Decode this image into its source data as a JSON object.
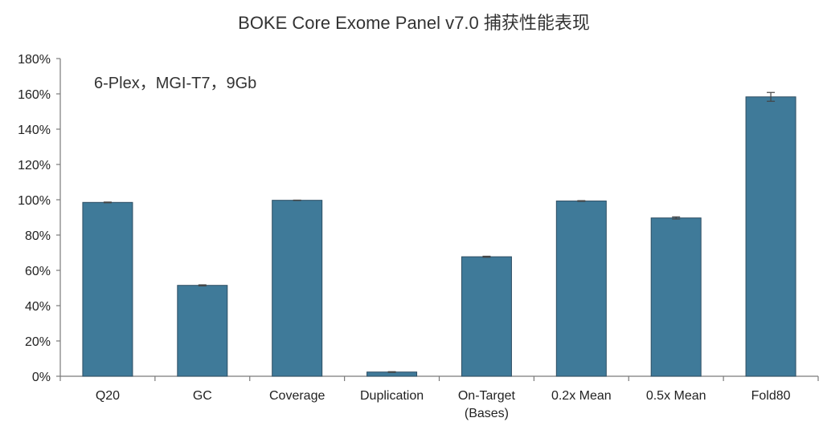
{
  "chart_data": {
    "type": "bar",
    "title": "BOKE Core Exome Panel v7.0 捕获性能表现",
    "annotation": "6-Plex，MGI-T7，9Gb",
    "xlabel": "",
    "ylabel": "",
    "ylim": [
      0,
      180
    ],
    "yticks": [
      0,
      20,
      40,
      60,
      80,
      100,
      120,
      140,
      160,
      180
    ],
    "ytick_suffix": "%",
    "grid": false,
    "categories": [
      [
        "Q20"
      ],
      [
        "GC"
      ],
      [
        "Coverage"
      ],
      [
        "Duplication"
      ],
      [
        "On-Target",
        "(Bases)"
      ],
      [
        "0.2x Mean"
      ],
      [
        "0.5x Mean"
      ],
      [
        "Fold80"
      ]
    ],
    "values": [
      98.5,
      51.5,
      99.7,
      2.4,
      67.7,
      99.3,
      89.7,
      158.3
    ],
    "errors": [
      0.2,
      0.3,
      0.1,
      0.2,
      0.3,
      0.2,
      0.6,
      2.5
    ],
    "bar_color": "#3f7a99"
  }
}
